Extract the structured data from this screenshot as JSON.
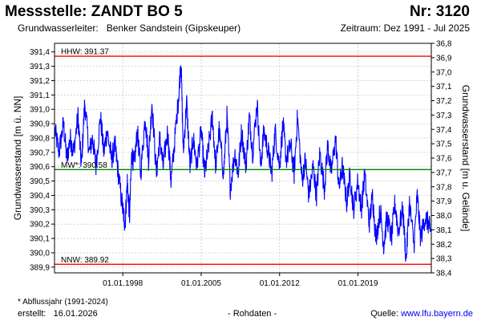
{
  "header": {
    "title": "Messstelle: ZANDT BO 5",
    "number": "Nr: 3120",
    "aquifer_label": "Grundwasserleiter:",
    "aquifer": "Benker Sandstein (Gipskeuper)",
    "period": "Zeitraum: Dez 1991 - Jul 2025"
  },
  "footer": {
    "footnote": "* Abflussjahr (1991-2024)",
    "created_label": "erstellt:",
    "created_date": "16.01.2026",
    "center_note": "- Rohdaten -",
    "source_label": "Quelle:",
    "source_url": "www.lfu.bayern.de"
  },
  "chart_data": {
    "type": "line",
    "ylabel_left": "Grundwasserstand [m ü. NN]",
    "ylabel_right": "Grundwasserstand [m u. Gelände]",
    "xlim": [
      1991.9,
      2025.55
    ],
    "ylim": [
      389.86,
      391.46
    ],
    "right_ylim": [
      38.4,
      36.8
    ],
    "x_tick_labels": [
      "01.01.1998",
      "01.01.2005",
      "01.01.2012",
      "01.01.2019"
    ],
    "x_tick_positions": [
      1998.0,
      2005.0,
      2012.0,
      2019.0
    ],
    "y_left_ticks": [
      "389,9",
      "390,0",
      "390,1",
      "390,2",
      "390,3",
      "390,4",
      "390,5",
      "390,6",
      "390,7",
      "390,8",
      "390,9",
      "391,0",
      "391,1",
      "391,2",
      "391,3",
      "391,4"
    ],
    "y_left_values": [
      389.9,
      390.0,
      390.1,
      390.2,
      390.3,
      390.4,
      390.5,
      390.6,
      390.7,
      390.8,
      390.9,
      391.0,
      391.1,
      391.2,
      391.3,
      391.4
    ],
    "y_right_ticks": [
      "36,8",
      "36,9",
      "37,0",
      "37,1",
      "37,2",
      "37,3",
      "37,4",
      "37,5",
      "37,6",
      "37,7",
      "37,8",
      "37,9",
      "38,0",
      "38,1",
      "38,2",
      "38,3",
      "38,4"
    ],
    "y_right_values": [
      36.8,
      36.9,
      37.0,
      37.1,
      37.2,
      37.3,
      37.4,
      37.5,
      37.6,
      37.7,
      37.8,
      37.9,
      38.0,
      38.1,
      38.2,
      38.3,
      38.4
    ],
    "grid": true,
    "reference_lines": [
      {
        "label": "HHW: 391.37",
        "value": 391.37,
        "color": "#ff0000"
      },
      {
        "label": "MW*: 390.58",
        "value": 390.58,
        "color": "#008000"
      },
      {
        "label": "NNW: 389.92",
        "value": 389.92,
        "color": "#ff0000"
      }
    ],
    "series": [
      {
        "color": "#0000ff",
        "x": [
          1991.95,
          1992.3,
          1992.7,
          1993.0,
          1993.3,
          1993.6,
          1994.0,
          1994.3,
          1994.6,
          1995.0,
          1995.3,
          1995.6,
          1996.0,
          1996.3,
          1996.6,
          1997.0,
          1997.3,
          1997.6,
          1998.0,
          1998.2,
          1998.4,
          1998.6,
          1998.8,
          1999.0,
          1999.3,
          1999.6,
          2000.0,
          2000.3,
          2000.6,
          2001.0,
          2001.3,
          2001.6,
          2002.0,
          2002.3,
          2002.6,
          2003.0,
          2003.2,
          2003.4,
          2003.7,
          2004.0,
          2004.3,
          2004.6,
          2005.0,
          2005.3,
          2005.6,
          2006.0,
          2006.3,
          2006.6,
          2007.0,
          2007.3,
          2007.6,
          2008.0,
          2008.3,
          2008.6,
          2009.0,
          2009.3,
          2009.6,
          2010.0,
          2010.3,
          2010.6,
          2011.0,
          2011.3,
          2011.6,
          2012.0,
          2012.3,
          2012.6,
          2013.0,
          2013.3,
          2013.6,
          2014.0,
          2014.3,
          2014.6,
          2015.0,
          2015.3,
          2015.6,
          2016.0,
          2016.3,
          2016.6,
          2017.0,
          2017.3,
          2017.6,
          2018.0,
          2018.3,
          2018.6,
          2019.0,
          2019.3,
          2019.6,
          2020.0,
          2020.3,
          2020.6,
          2021.0,
          2021.3,
          2021.6,
          2022.0,
          2022.3,
          2022.6,
          2023.0,
          2023.3,
          2023.6,
          2024.0,
          2024.3,
          2024.6,
          2025.0,
          2025.3,
          2025.5
        ],
        "y": [
          390.85,
          390.7,
          390.9,
          390.65,
          390.8,
          390.7,
          390.95,
          390.6,
          391.05,
          390.7,
          390.8,
          390.6,
          390.95,
          390.7,
          390.85,
          390.65,
          390.75,
          390.55,
          390.3,
          390.2,
          390.5,
          390.25,
          390.7,
          390.6,
          390.85,
          390.55,
          390.95,
          390.65,
          391.05,
          390.55,
          390.8,
          390.6,
          390.85,
          390.5,
          390.75,
          391.1,
          391.35,
          390.7,
          391.05,
          390.6,
          390.8,
          390.6,
          390.85,
          390.55,
          390.7,
          390.95,
          390.6,
          390.85,
          390.55,
          390.95,
          390.45,
          390.7,
          390.55,
          390.85,
          390.6,
          390.95,
          390.7,
          391.05,
          390.6,
          390.85,
          390.7,
          390.55,
          390.85,
          390.6,
          390.9,
          390.65,
          390.75,
          390.55,
          390.95,
          390.5,
          390.65,
          390.4,
          390.6,
          390.4,
          390.7,
          390.45,
          390.75,
          390.55,
          390.8,
          390.45,
          390.6,
          390.35,
          390.55,
          390.3,
          390.5,
          390.3,
          390.55,
          390.2,
          390.4,
          390.1,
          390.3,
          390.05,
          390.25,
          390.1,
          390.35,
          390.15,
          390.3,
          389.95,
          390.35,
          390.05,
          390.4,
          390.1,
          390.25,
          390.2,
          390.15
        ]
      }
    ]
  }
}
